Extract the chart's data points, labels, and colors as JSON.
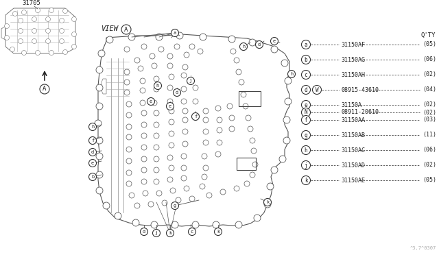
{
  "bg_color": "#ffffff",
  "part_number_label": "31705",
  "footer_text": "^3.7^0307",
  "legend_header": "Q'TY",
  "legend_items": [
    {
      "circle": "a",
      "part": "31150AF",
      "qty": "(05)",
      "sub": false
    },
    {
      "circle": "b",
      "part": "31150AG",
      "qty": "(06)",
      "sub": false
    },
    {
      "circle": "c",
      "part": "31150AH",
      "qty": "(02)",
      "sub": false
    },
    {
      "circle": "d",
      "circle2": "W",
      "part": "08915-43610",
      "qty": "(04)",
      "sub": false
    },
    {
      "circle": "e",
      "part": "31150A",
      "qty": "(02)",
      "sub": false
    },
    {
      "circle": "N",
      "part": "08911-20610",
      "qty": "(02)",
      "sub": true
    },
    {
      "circle": "f",
      "part": "31150AA",
      "qty": "(03)",
      "sub": false
    },
    {
      "circle": "g",
      "part": "31150AB",
      "qty": "(11)",
      "sub": false
    },
    {
      "circle": "h",
      "part": "31150AC",
      "qty": "(06)",
      "sub": false
    },
    {
      "circle": "j",
      "part": "31150AD",
      "qty": "(02)",
      "sub": false
    },
    {
      "circle": "k",
      "part": "31150AE",
      "qty": "(05)",
      "sub": false
    }
  ],
  "line_color": "#444444",
  "circle_color": "#333333",
  "text_color": "#222222",
  "light_color": "#888888"
}
